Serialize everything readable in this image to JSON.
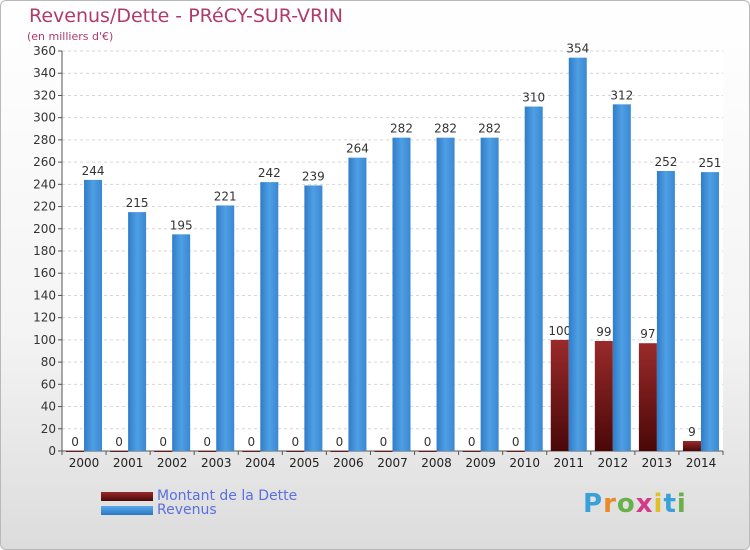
{
  "chart_data": {
    "type": "bar",
    "title": "Revenus/Dette - PRéCY-SUR-VRIN",
    "subtitle": "(en milliers d'€)",
    "categories": [
      "2000",
      "2001",
      "2002",
      "2003",
      "2004",
      "2005",
      "2006",
      "2007",
      "2008",
      "2009",
      "2010",
      "2011",
      "2012",
      "2013",
      "2014"
    ],
    "series": [
      {
        "name": "Montant de la Dette",
        "values": [
          0,
          0,
          0,
          0,
          0,
          0,
          0,
          0,
          0,
          0,
          0,
          100,
          99,
          97,
          9
        ],
        "color": "#7a1414"
      },
      {
        "name": "Revenus",
        "values": [
          244,
          215,
          195,
          221,
          242,
          239,
          264,
          282,
          282,
          282,
          310,
          354,
          312,
          252,
          251
        ],
        "color": "#3f8fd8"
      }
    ],
    "ylim": [
      0,
      360
    ],
    "yticks": [
      0,
      20,
      40,
      60,
      80,
      100,
      120,
      140,
      160,
      180,
      200,
      220,
      240,
      260,
      280,
      300,
      320,
      340,
      360
    ],
    "grid": true,
    "legend": "bottom-left"
  },
  "watermark": {
    "letters": [
      "P",
      "r",
      "o",
      "x",
      "i",
      "t",
      "i"
    ],
    "colors": [
      "#3aa0d8",
      "#e98a2a",
      "#6ab04a",
      "#d33a8a",
      "#e0c02a",
      "#3aa0d8",
      "#6ab04a"
    ]
  }
}
